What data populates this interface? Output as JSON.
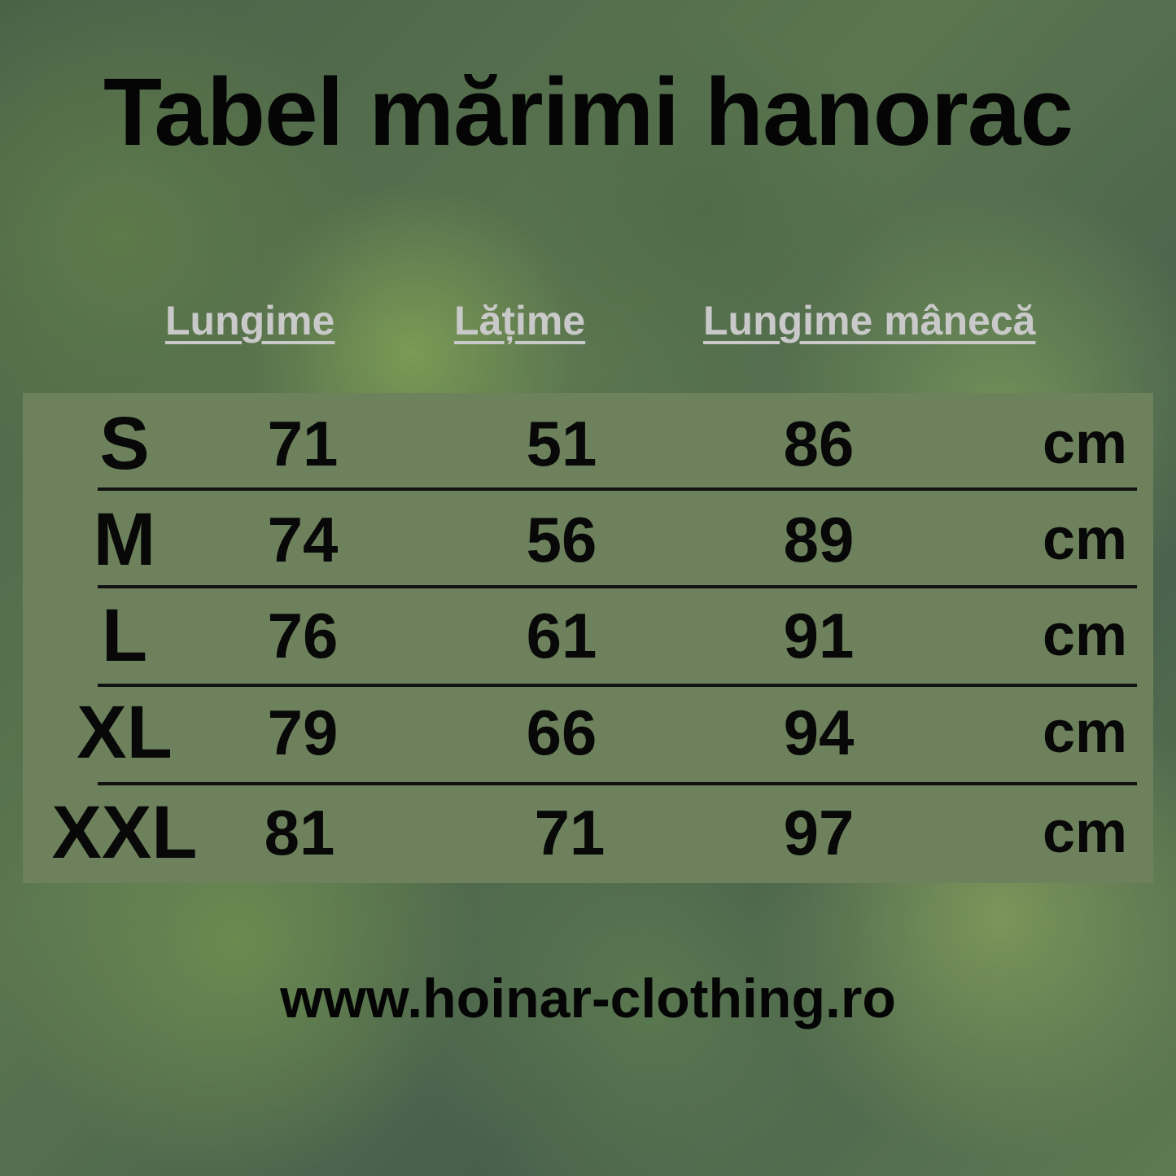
{
  "title": "Tabel mărimi hanorac",
  "headers": [
    "Lungime",
    "Lățime",
    "Lungime mânecă"
  ],
  "unit": "cm",
  "rows": [
    {
      "size": "S",
      "lungime": "71",
      "latime": "51",
      "maneca": "86"
    },
    {
      "size": "M",
      "lungime": "74",
      "latime": "56",
      "maneca": "89"
    },
    {
      "size": "L",
      "lungime": "76",
      "latime": "61",
      "maneca": "91"
    },
    {
      "size": "XL",
      "lungime": "79",
      "latime": "66",
      "maneca": "94"
    },
    {
      "size": "XXL",
      "lungime": "81",
      "latime": "71",
      "maneca": "97"
    }
  ],
  "website": "www.hoinar-clothing.ro",
  "colors": {
    "table_bg": "#6d825c",
    "header_text": "#c9c9c9",
    "text": "#080808"
  }
}
